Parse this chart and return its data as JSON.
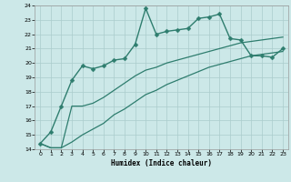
{
  "title": "",
  "xlabel": "Humidex (Indice chaleur)",
  "bg_color": "#cce8e8",
  "grid_color": "#aacccc",
  "line_color": "#2e7d6e",
  "xlim": [
    -0.5,
    23.5
  ],
  "ylim": [
    14,
    24
  ],
  "xticks": [
    0,
    1,
    2,
    3,
    4,
    5,
    6,
    7,
    8,
    9,
    10,
    11,
    12,
    13,
    14,
    15,
    16,
    17,
    18,
    19,
    20,
    21,
    22,
    23
  ],
  "yticks": [
    14,
    15,
    16,
    17,
    18,
    19,
    20,
    21,
    22,
    23,
    24
  ],
  "series": [
    {
      "x": [
        0,
        1,
        2,
        3,
        4,
        5,
        6,
        7,
        8,
        9,
        10,
        11,
        12,
        13,
        14,
        15,
        16,
        17,
        18,
        19,
        20,
        21,
        22,
        23
      ],
      "y": [
        14.4,
        15.2,
        17.0,
        18.8,
        19.8,
        19.6,
        19.8,
        20.2,
        20.3,
        21.3,
        23.8,
        22.0,
        22.2,
        22.3,
        22.4,
        23.1,
        23.2,
        23.4,
        21.7,
        21.6,
        20.5,
        20.5,
        20.4,
        21.0
      ],
      "marker": "D",
      "markersize": 2.5,
      "linewidth": 1.0
    },
    {
      "x": [
        0,
        1,
        2,
        3,
        4,
        5,
        6,
        7,
        8,
        9,
        10,
        11,
        12,
        13,
        14,
        15,
        16,
        17,
        18,
        19,
        20,
        21,
        22,
        23
      ],
      "y": [
        14.4,
        14.1,
        14.1,
        17.0,
        17.0,
        17.2,
        17.6,
        18.1,
        18.6,
        19.1,
        19.5,
        19.7,
        20.0,
        20.2,
        20.4,
        20.6,
        20.8,
        21.0,
        21.2,
        21.4,
        21.5,
        21.6,
        21.7,
        21.8
      ],
      "marker": null,
      "linewidth": 0.9
    },
    {
      "x": [
        0,
        1,
        2,
        3,
        4,
        5,
        6,
        7,
        8,
        9,
        10,
        11,
        12,
        13,
        14,
        15,
        16,
        17,
        18,
        19,
        20,
        21,
        22,
        23
      ],
      "y": [
        14.4,
        14.1,
        14.1,
        14.5,
        15.0,
        15.4,
        15.8,
        16.4,
        16.8,
        17.3,
        17.8,
        18.1,
        18.5,
        18.8,
        19.1,
        19.4,
        19.7,
        19.9,
        20.1,
        20.3,
        20.5,
        20.6,
        20.7,
        20.8
      ],
      "marker": null,
      "linewidth": 0.9
    }
  ]
}
